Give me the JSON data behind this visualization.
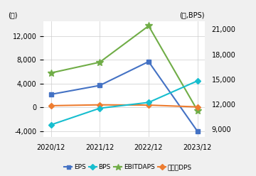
{
  "x_labels": [
    "2020/12",
    "2021/12",
    "2022/12",
    "2023/12"
  ],
  "x_values": [
    0,
    1,
    2,
    3
  ],
  "EPS": [
    2200,
    3700,
    7700,
    -4000
  ],
  "BPS": [
    9500,
    11500,
    12200,
    14800
  ],
  "EBITDAPS": [
    5800,
    7600,
    13700,
    -500
  ],
  "DPS": [
    300,
    450,
    400,
    100
  ],
  "left_ylim": [
    -5000,
    14500
  ],
  "left_yticks": [
    -4000,
    0,
    4000,
    8000,
    12000
  ],
  "right_ylim": [
    8000,
    22000
  ],
  "right_yticks": [
    9000,
    12000,
    15000,
    18000,
    21000
  ],
  "left_ylabel": "(원)",
  "right_ylabel": "(원,BPS)",
  "colors": {
    "EPS": "#4472c4",
    "BPS": "#17becf",
    "EBITDAPS": "#70ad47",
    "DPS": "#ed7d31"
  },
  "markers": {
    "EPS": "s",
    "BPS": "D",
    "EBITDAPS": "*",
    "DPS": "D"
  },
  "legend_labels": [
    "EPS",
    "BPS",
    "EBITDAPS",
    "보통주DPS"
  ],
  "bg_color": "#f0f0f0",
  "plot_bg": "#ffffff"
}
